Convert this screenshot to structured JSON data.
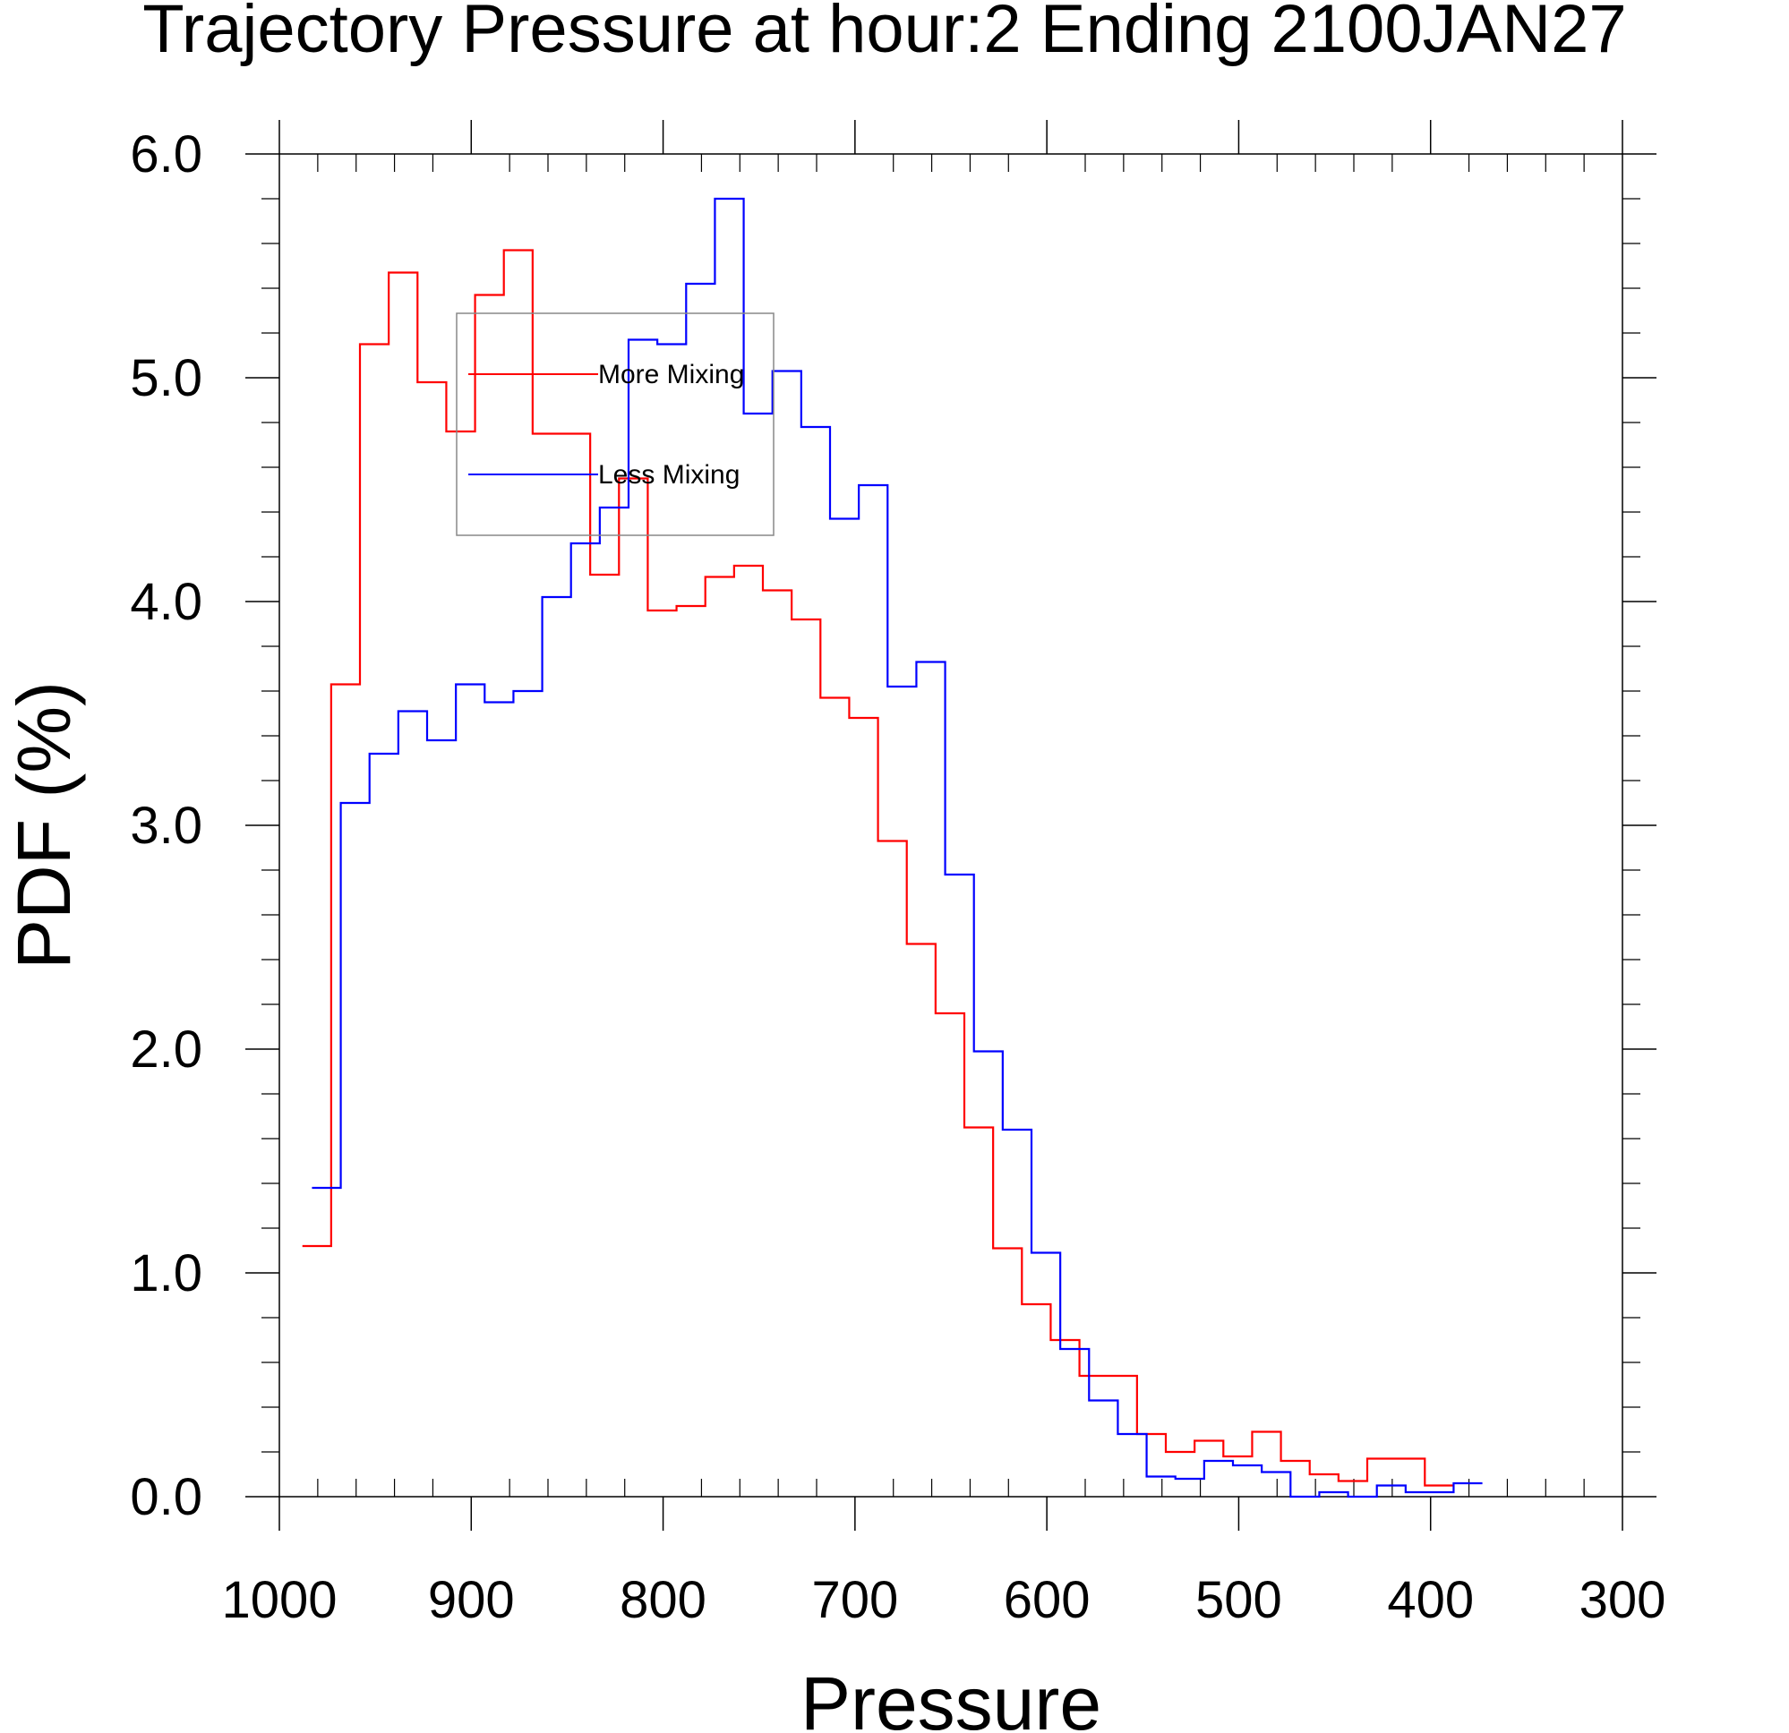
{
  "chart_data": {
    "type": "line",
    "step": true,
    "title": "Trajectory Pressure at hour:2 Ending 2100JAN27",
    "xlabel": "Pressure",
    "ylabel": "PDF (%)",
    "xlim": [
      1000,
      300
    ],
    "ylim": [
      0,
      6
    ],
    "x_reversed": true,
    "xticks": [
      1000,
      900,
      800,
      700,
      600,
      500,
      400,
      300
    ],
    "xtick_labels": [
      "1000",
      "900",
      "800",
      "700",
      "600",
      "500",
      "400",
      "300"
    ],
    "yticks": [
      0,
      1,
      2,
      3,
      4,
      5,
      6
    ],
    "ytick_labels": [
      "0.0",
      "1.0",
      "2.0",
      "3.0",
      "4.0",
      "5.0",
      "6.0"
    ],
    "grid": false,
    "legend_position": "top-center",
    "series": [
      {
        "name": "More Mixing",
        "color": "#ff0000",
        "x": [
          988,
          973,
          958,
          943,
          928,
          913,
          898,
          883,
          868,
          853,
          838,
          823,
          808,
          793,
          778,
          763,
          748,
          733,
          718,
          703,
          688,
          673,
          658,
          643,
          628,
          613,
          598,
          583,
          568,
          553,
          538,
          523,
          508,
          493,
          478,
          463,
          448,
          433
        ],
        "values": [
          1.12,
          3.63,
          5.15,
          5.47,
          4.98,
          4.76,
          5.37,
          5.57,
          4.75,
          4.75,
          4.12,
          4.55,
          3.96,
          3.98,
          4.11,
          4.16,
          4.05,
          3.92,
          3.57,
          3.48,
          2.93,
          2.47,
          2.16,
          1.65,
          1.11,
          0.86,
          0.7,
          0.54,
          0.54,
          0.28,
          0.2,
          0.25,
          0.18,
          0.29,
          0.16,
          0.1,
          0.07,
          0.17
        ],
        "end_x": 403,
        "end_value": 0.05
      },
      {
        "name": "Less Mixing",
        "color": "#0000ff",
        "x": [
          983,
          968,
          953,
          938,
          923,
          908,
          893,
          878,
          863,
          848,
          833,
          818,
          803,
          788,
          773,
          758,
          743,
          728,
          713,
          698,
          683,
          668,
          653,
          638,
          623,
          608,
          593,
          578,
          563,
          548,
          533,
          518,
          503,
          488,
          473,
          458,
          443,
          428,
          413
        ],
        "values": [
          1.38,
          3.1,
          3.32,
          3.51,
          3.38,
          3.63,
          3.55,
          3.6,
          4.02,
          4.26,
          4.42,
          5.17,
          5.15,
          5.42,
          5.8,
          4.84,
          5.03,
          4.78,
          4.37,
          4.52,
          3.62,
          3.73,
          2.78,
          1.99,
          1.64,
          1.09,
          0.66,
          0.43,
          0.28,
          0.09,
          0.08,
          0.16,
          0.14,
          0.11,
          0.0,
          0.02,
          0.0,
          0.05,
          0.02
        ],
        "end_x": 388,
        "end_value": 0.06
      }
    ]
  }
}
